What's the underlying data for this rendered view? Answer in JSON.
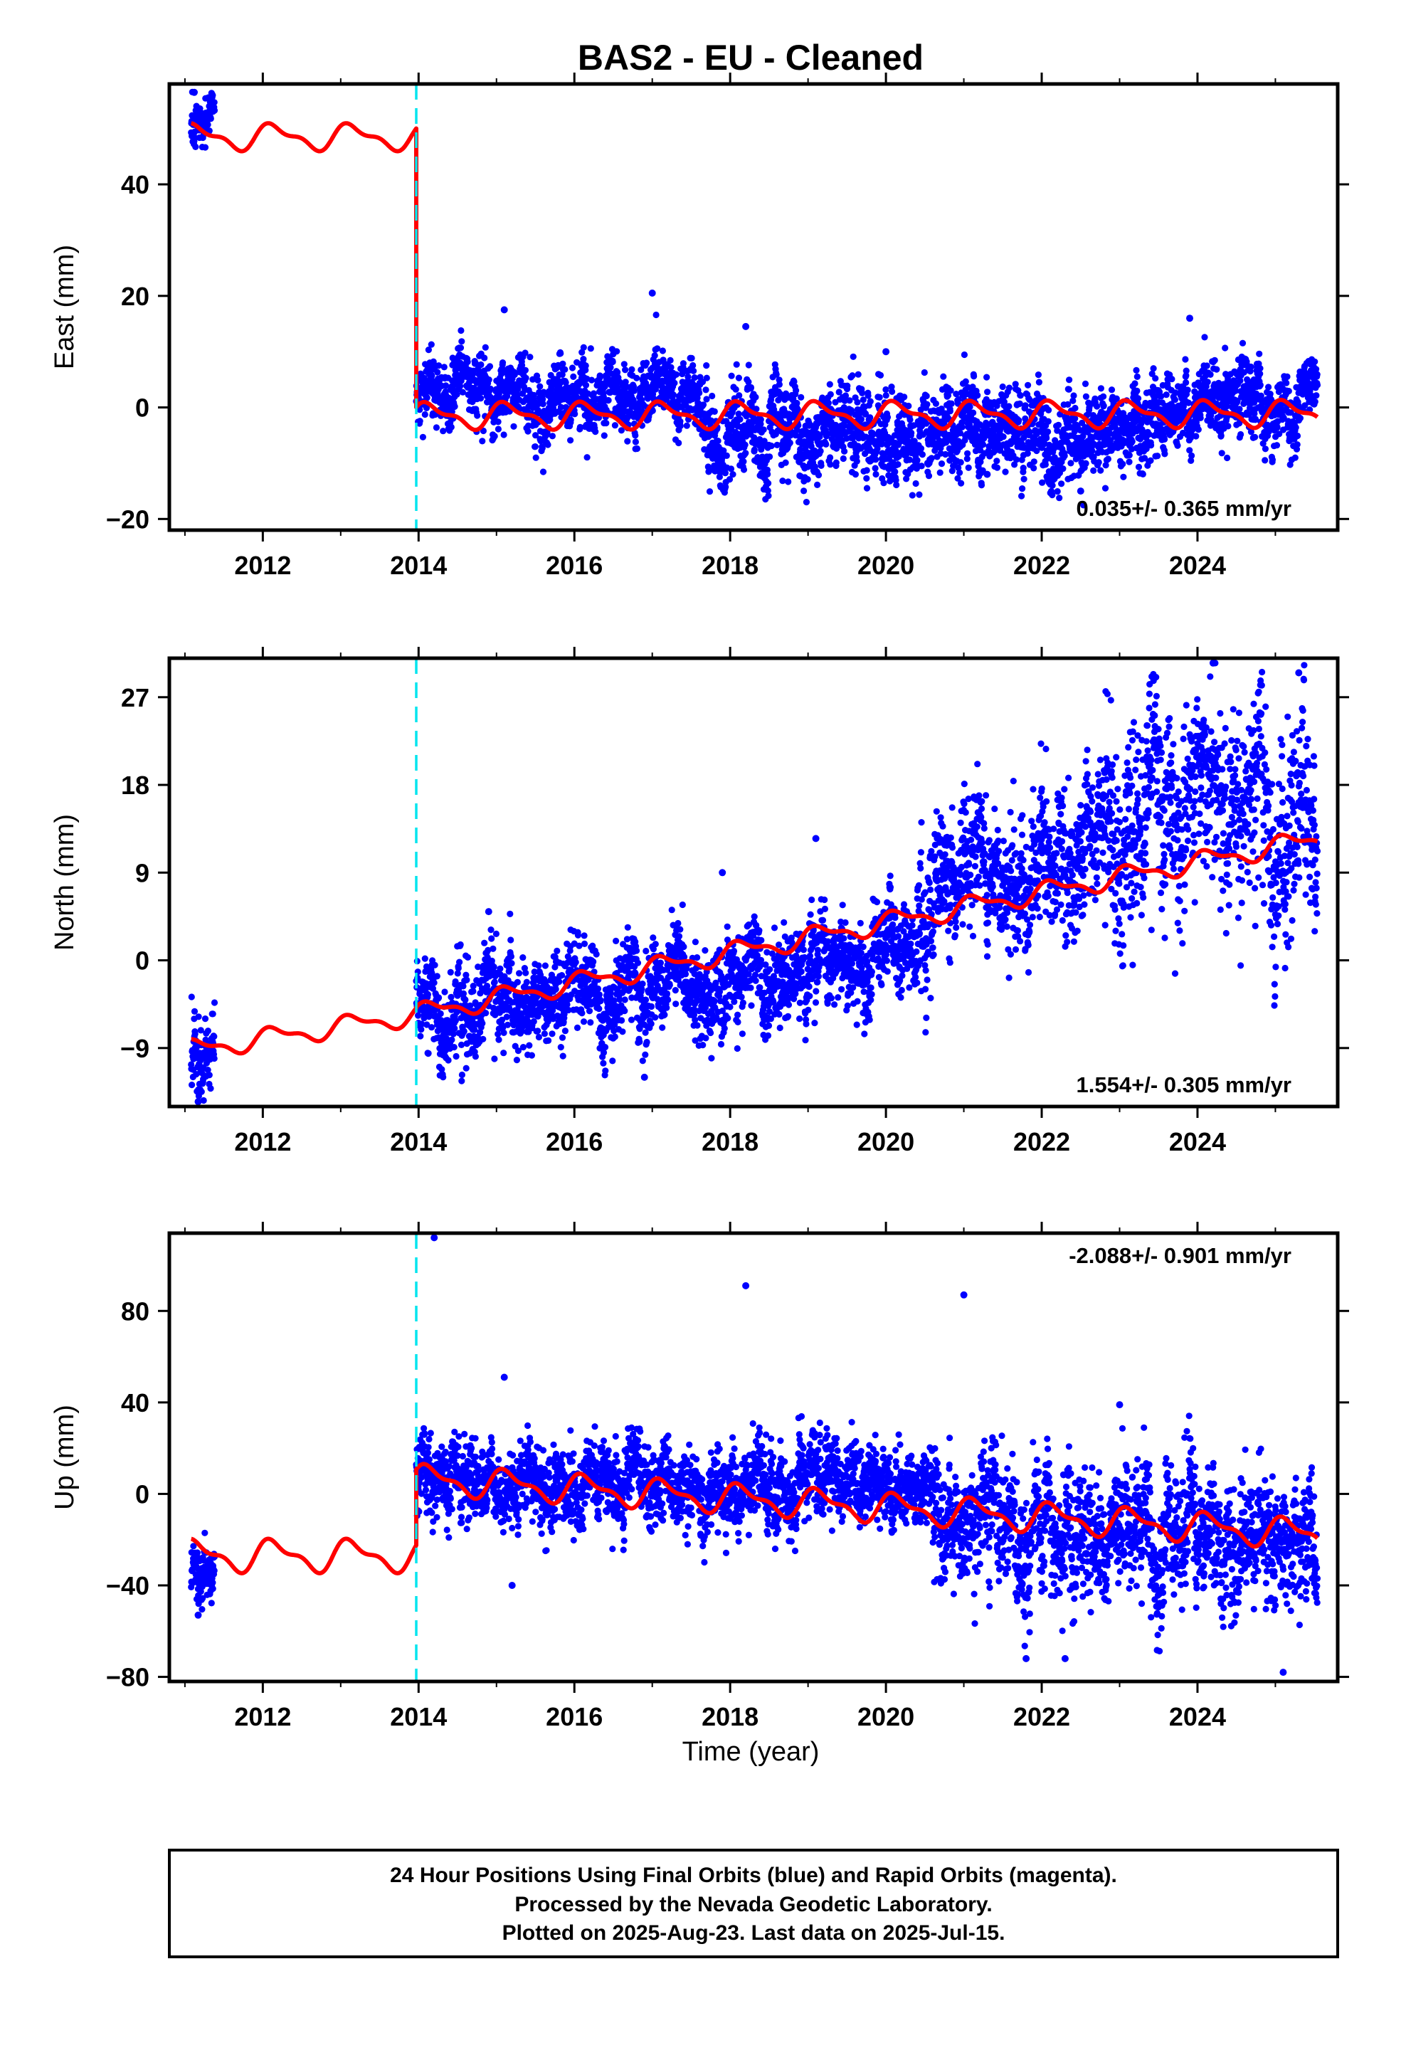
{
  "figure": {
    "title": "BAS2  - EU - Cleaned",
    "x_axis_label": "Time (year)",
    "footer": [
      "24 Hour Positions Using Final Orbits (blue) and Rapid Orbits (magenta).",
      "Processed by the Nevada Geodetic Laboratory.",
      "Plotted on 2025-Aug-23. Last data on 2025-Jul-15."
    ]
  },
  "colors": {
    "observations": "#0000ff",
    "model": "#ff0000",
    "discontinuity": "#00e5ee",
    "frame": "#000000"
  },
  "chart_data": [
    {
      "type": "scatter",
      "name": "east",
      "ylabel": "East (mm)",
      "xlim": [
        2010.8,
        2025.8
      ],
      "ylim": [
        -22,
        58
      ],
      "x_ticks": [
        2012,
        2014,
        2016,
        2018,
        2020,
        2022,
        2024
      ],
      "y_ticks": [
        -20,
        0,
        20,
        40
      ],
      "rate_label": "0.035+/- 0.365 mm/yr",
      "rate_position": "bottom-right",
      "discontinuity_x": 2013.97,
      "obs_segments": [
        {
          "x_start": 2011.08,
          "x_end": 2011.38,
          "level": 50.0,
          "trend": 0.0,
          "scatter": 1.8
        },
        {
          "x_start": 2013.97,
          "x_end": 2017.7,
          "level": 3.0,
          "trend": 0.0,
          "scatter": 2.6
        },
        {
          "x_start": 2017.7,
          "x_end": 2023.5,
          "level": -5.0,
          "trend": 0.3,
          "scatter": 3.4
        },
        {
          "x_start": 2023.5,
          "x_end": 2025.54,
          "level": 1.0,
          "trend": 0.6,
          "scatter": 2.8
        }
      ],
      "model_segments": [
        {
          "x_start": 2011.08,
          "x_end": 2013.97,
          "level": 48.5,
          "trend": 0.0,
          "amp": 2.0
        },
        {
          "x_start": 2013.97,
          "x_end": 2025.54,
          "level": -1.5,
          "trend": 0.035,
          "amp": 2.0
        }
      ],
      "outliers": [
        [
          2011.12,
          56.5
        ],
        [
          2017.0,
          20.5
        ],
        [
          2015.1,
          17.5
        ],
        [
          2018.2,
          14.5
        ],
        [
          2020.0,
          10.0
        ],
        [
          2023.9,
          16.0
        ],
        [
          2021.3,
          -12.0
        ],
        [
          2022.5,
          -15.0
        ]
      ]
    },
    {
      "type": "scatter",
      "name": "north",
      "ylabel": "North (mm)",
      "xlim": [
        2010.8,
        2025.8
      ],
      "ylim": [
        -15,
        31
      ],
      "x_ticks": [
        2012,
        2014,
        2016,
        2018,
        2020,
        2022,
        2024
      ],
      "y_ticks": [
        -9,
        0,
        9,
        18,
        27
      ],
      "rate_label": "1.554+/- 0.305 mm/yr",
      "rate_position": "bottom-right",
      "discontinuity_x": 2013.97,
      "obs_segments": [
        {
          "x_start": 2011.08,
          "x_end": 2011.38,
          "level": -9.0,
          "trend": 0.0,
          "scatter": 1.8
        },
        {
          "x_start": 2013.97,
          "x_end": 2020.4,
          "level": -6.0,
          "trend": 0.95,
          "scatter": 2.0
        },
        {
          "x_start": 2020.4,
          "x_end": 2022.8,
          "level": 8.5,
          "trend": 0.6,
          "scatter": 3.0
        },
        {
          "x_start": 2022.8,
          "x_end": 2025.54,
          "level": 13.0,
          "trend": 2.0,
          "scatter": 4.5
        }
      ],
      "model_segments": [
        {
          "x_start": 2011.08,
          "x_end": 2013.97,
          "level": -9.2,
          "trend": 1.25,
          "amp": 0.9
        },
        {
          "x_start": 2013.97,
          "x_end": 2025.54,
          "level": -5.5,
          "trend": 1.554,
          "amp": 0.9
        }
      ],
      "outliers": [
        [
          2011.17,
          -14.5
        ],
        [
          2016.9,
          -12.0
        ],
        [
          2017.9,
          9.0
        ],
        [
          2019.1,
          12.5
        ],
        [
          2024.2,
          30.5
        ],
        [
          2025.3,
          29.5
        ],
        [
          2014.9,
          5.0
        ]
      ]
    },
    {
      "type": "scatter",
      "name": "up",
      "ylabel": "Up (mm)",
      "xlim": [
        2010.8,
        2025.8
      ],
      "ylim": [
        -82,
        114
      ],
      "x_ticks": [
        2012,
        2014,
        2016,
        2018,
        2020,
        2022,
        2024
      ],
      "y_ticks": [
        -80,
        -40,
        0,
        40,
        80
      ],
      "rate_label": "-2.088+/- 0.901 mm/yr",
      "rate_position": "top-right",
      "discontinuity_x": 2013.97,
      "obs_segments": [
        {
          "x_start": 2011.08,
          "x_end": 2011.38,
          "level": -28.0,
          "trend": 0.0,
          "scatter": 5.0
        },
        {
          "x_start": 2013.97,
          "x_end": 2020.6,
          "level": 8.0,
          "trend": -1.0,
          "scatter": 7.5
        },
        {
          "x_start": 2020.6,
          "x_end": 2025.54,
          "level": -15.0,
          "trend": -2.5,
          "scatter": 12.0
        }
      ],
      "model_segments": [
        {
          "x_start": 2011.08,
          "x_end": 2013.97,
          "level": -27.0,
          "trend": 0.0,
          "amp": 6.0
        },
        {
          "x_start": 2013.97,
          "x_end": 2025.54,
          "level": 6.5,
          "trend": -2.088,
          "amp": 5.5
        }
      ],
      "outliers": [
        [
          2014.2,
          112.0
        ],
        [
          2018.2,
          91.0
        ],
        [
          2021.0,
          87.0
        ],
        [
          2015.1,
          51.0
        ],
        [
          2023.0,
          39.0
        ],
        [
          2011.17,
          -53.0
        ],
        [
          2015.2,
          -40.0
        ],
        [
          2021.8,
          -72.0
        ],
        [
          2022.3,
          -72.0
        ],
        [
          2025.1,
          -78.0
        ]
      ]
    }
  ]
}
